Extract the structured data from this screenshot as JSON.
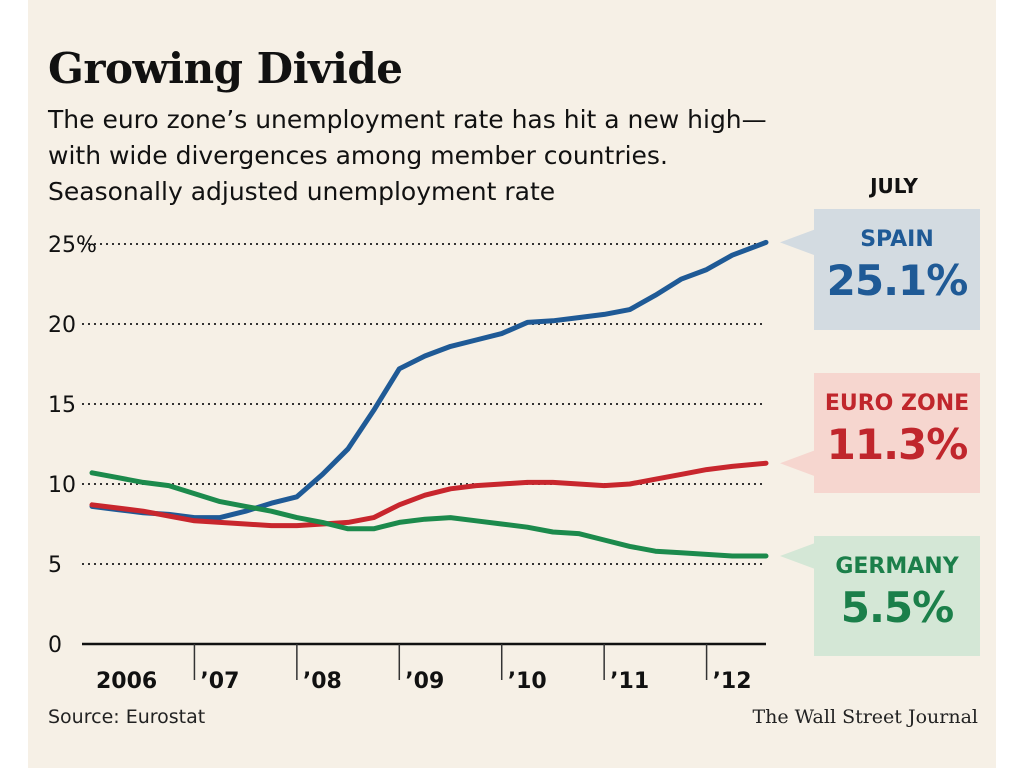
{
  "header": {
    "title": "Growing Divide",
    "subtitle_lines": [
      "The euro zone’s unemployment rate has hit a new high—",
      "with wide divergences among member countries.",
      "Seasonally adjusted unemployment rate"
    ]
  },
  "callouts": {
    "heading": "JULY",
    "spain": {
      "name": "SPAIN",
      "value": "25.1%",
      "text_color": "#1f5a96",
      "bg": "#d3dbe1"
    },
    "euro": {
      "name": "EURO ZONE",
      "value": "11.3%",
      "text_color": "#c0262c",
      "bg": "#f6d6cf"
    },
    "germany": {
      "name": "GERMANY",
      "value": "5.5%",
      "text_color": "#1b7f4a",
      "bg": "#d4e7d6"
    }
  },
  "footer": {
    "source": "Source: Eurostat",
    "credit": "The Wall Street Journal"
  },
  "chart_data": {
    "type": "line",
    "title": "Growing Divide",
    "ylim": [
      0,
      25
    ],
    "y_ticks": [
      {
        "value": 0,
        "label": "0"
      },
      {
        "value": 5,
        "label": "5"
      },
      {
        "value": 10,
        "label": "10"
      },
      {
        "value": 15,
        "label": "15"
      },
      {
        "value": 20,
        "label": "20"
      },
      {
        "value": 25,
        "label": "25%"
      }
    ],
    "x_range": [
      2006.0,
      2012.58
    ],
    "x_ticks": [
      {
        "value": 2006,
        "label": "2006"
      },
      {
        "value": 2007,
        "label": "’07"
      },
      {
        "value": 2008,
        "label": "’08"
      },
      {
        "value": 2009,
        "label": "’09"
      },
      {
        "value": 2010,
        "label": "’10"
      },
      {
        "value": 2011,
        "label": "’11"
      },
      {
        "value": 2012,
        "label": "’12"
      }
    ],
    "grid": "horizontal dotted",
    "series": [
      {
        "name": "SPAIN",
        "color": "#1f5a96",
        "points": [
          [
            2006.0,
            8.6
          ],
          [
            2006.25,
            8.4
          ],
          [
            2006.5,
            8.2
          ],
          [
            2006.75,
            8.1
          ],
          [
            2007.0,
            7.9
          ],
          [
            2007.25,
            7.9
          ],
          [
            2007.5,
            8.3
          ],
          [
            2007.75,
            8.8
          ],
          [
            2008.0,
            9.2
          ],
          [
            2008.25,
            10.6
          ],
          [
            2008.5,
            12.2
          ],
          [
            2008.75,
            14.6
          ],
          [
            2009.0,
            17.2
          ],
          [
            2009.25,
            18.0
          ],
          [
            2009.5,
            18.6
          ],
          [
            2009.75,
            19.0
          ],
          [
            2010.0,
            19.4
          ],
          [
            2010.25,
            20.1
          ],
          [
            2010.5,
            20.2
          ],
          [
            2010.75,
            20.4
          ],
          [
            2011.0,
            20.6
          ],
          [
            2011.25,
            20.9
          ],
          [
            2011.5,
            21.8
          ],
          [
            2011.75,
            22.8
          ],
          [
            2012.0,
            23.4
          ],
          [
            2012.25,
            24.3
          ],
          [
            2012.58,
            25.1
          ]
        ]
      },
      {
        "name": "EURO ZONE",
        "color": "#c8262d",
        "points": [
          [
            2006.0,
            8.7
          ],
          [
            2006.25,
            8.5
          ],
          [
            2006.5,
            8.3
          ],
          [
            2006.75,
            8.0
          ],
          [
            2007.0,
            7.7
          ],
          [
            2007.25,
            7.6
          ],
          [
            2007.5,
            7.5
          ],
          [
            2007.75,
            7.4
          ],
          [
            2008.0,
            7.4
          ],
          [
            2008.25,
            7.5
          ],
          [
            2008.5,
            7.6
          ],
          [
            2008.75,
            7.9
          ],
          [
            2009.0,
            8.7
          ],
          [
            2009.25,
            9.3
          ],
          [
            2009.5,
            9.7
          ],
          [
            2009.75,
            9.9
          ],
          [
            2010.0,
            10.0
          ],
          [
            2010.25,
            10.1
          ],
          [
            2010.5,
            10.1
          ],
          [
            2010.75,
            10.0
          ],
          [
            2011.0,
            9.9
          ],
          [
            2011.25,
            10.0
          ],
          [
            2011.5,
            10.3
          ],
          [
            2011.75,
            10.6
          ],
          [
            2012.0,
            10.9
          ],
          [
            2012.25,
            11.1
          ],
          [
            2012.58,
            11.3
          ]
        ]
      },
      {
        "name": "GERMANY",
        "color": "#1c8a4c",
        "points": [
          [
            2006.0,
            10.7
          ],
          [
            2006.25,
            10.4
          ],
          [
            2006.5,
            10.1
          ],
          [
            2006.75,
            9.9
          ],
          [
            2007.0,
            9.4
          ],
          [
            2007.25,
            8.9
          ],
          [
            2007.5,
            8.6
          ],
          [
            2007.75,
            8.3
          ],
          [
            2008.0,
            7.9
          ],
          [
            2008.25,
            7.6
          ],
          [
            2008.5,
            7.2
          ],
          [
            2008.75,
            7.2
          ],
          [
            2009.0,
            7.6
          ],
          [
            2009.25,
            7.8
          ],
          [
            2009.5,
            7.9
          ],
          [
            2009.75,
            7.7
          ],
          [
            2010.0,
            7.5
          ],
          [
            2010.25,
            7.3
          ],
          [
            2010.5,
            7.0
          ],
          [
            2010.75,
            6.9
          ],
          [
            2011.0,
            6.5
          ],
          [
            2011.25,
            6.1
          ],
          [
            2011.5,
            5.8
          ],
          [
            2011.75,
            5.7
          ],
          [
            2012.0,
            5.6
          ],
          [
            2012.25,
            5.5
          ],
          [
            2012.58,
            5.5
          ]
        ]
      }
    ]
  }
}
